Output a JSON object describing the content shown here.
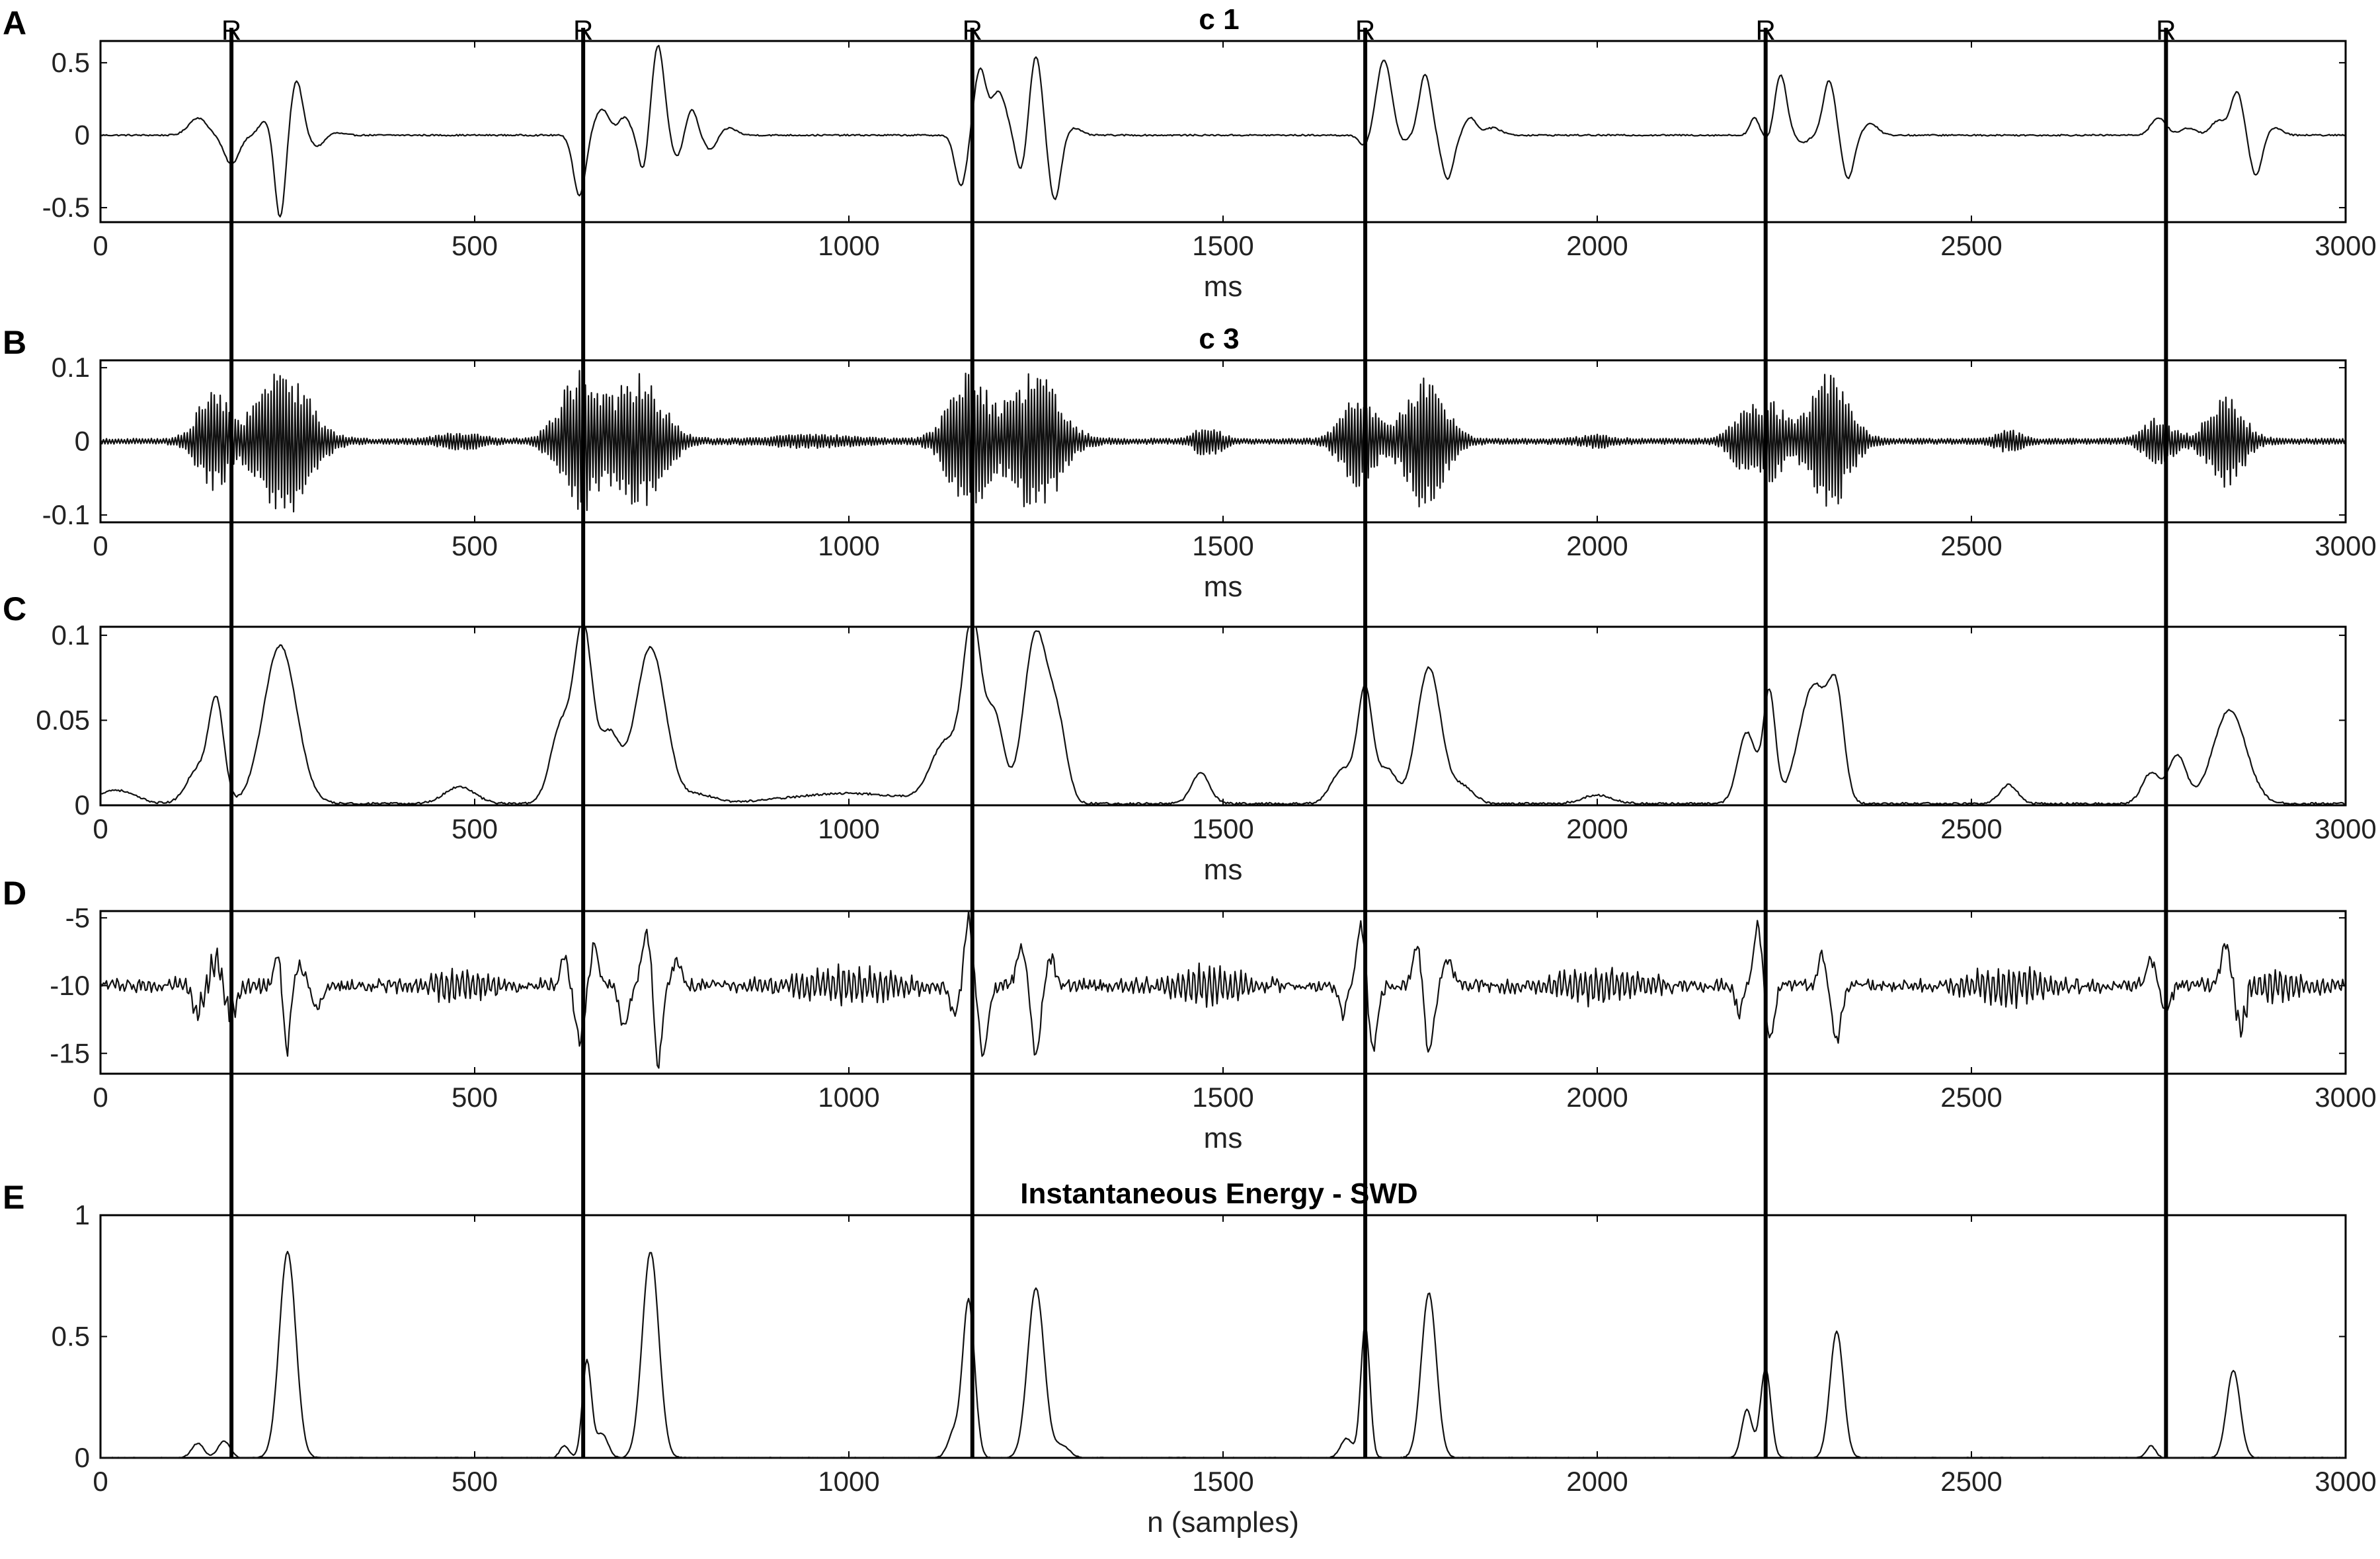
{
  "chart_data": [
    {
      "id": "A",
      "type": "line",
      "panel_letter": "A",
      "title": "c 1",
      "xlabel": "ms",
      "xlim": [
        0,
        3000
      ],
      "ylim": [
        -0.6,
        0.65
      ],
      "xticks": [
        0,
        500,
        1000,
        1500,
        2000,
        2500,
        3000
      ],
      "yticks": [
        -0.5,
        0,
        0.5
      ],
      "ytick_labels": [
        "-0.5",
        "0",
        "0.5"
      ],
      "baseline": 0,
      "noise": 0.005,
      "peaks": [
        [
          130,
          0.12,
          12
        ],
        [
          175,
          -0.2,
          10
        ],
        [
          220,
          0.1,
          8
        ],
        [
          240,
          -0.58,
          7
        ],
        [
          262,
          0.38,
          8
        ],
        [
          290,
          -0.08,
          10
        ],
        [
          310,
          0.02,
          12
        ],
        [
          640,
          -0.42,
          8
        ],
        [
          670,
          0.18,
          10
        ],
        [
          700,
          0.12,
          8
        ],
        [
          725,
          -0.25,
          6
        ],
        [
          745,
          0.62,
          8
        ],
        [
          770,
          -0.15,
          7
        ],
        [
          790,
          0.18,
          7
        ],
        [
          815,
          -0.1,
          8
        ],
        [
          840,
          0.05,
          10
        ],
        [
          1150,
          -0.35,
          8
        ],
        [
          1175,
          0.45,
          8
        ],
        [
          1200,
          0.3,
          10
        ],
        [
          1230,
          -0.25,
          7
        ],
        [
          1250,
          0.55,
          8
        ],
        [
          1275,
          -0.45,
          8
        ],
        [
          1300,
          0.05,
          10
        ],
        [
          1690,
          -0.08,
          8
        ],
        [
          1715,
          0.52,
          10
        ],
        [
          1740,
          -0.05,
          8
        ],
        [
          1770,
          0.42,
          8
        ],
        [
          1800,
          -0.3,
          8
        ],
        [
          1830,
          0.12,
          8
        ],
        [
          1860,
          0.05,
          12
        ],
        [
          2210,
          0.12,
          6
        ],
        [
          2230,
          -0.05,
          6
        ],
        [
          2245,
          0.42,
          8
        ],
        [
          2275,
          -0.05,
          8
        ],
        [
          2310,
          0.38,
          8
        ],
        [
          2335,
          -0.3,
          8
        ],
        [
          2365,
          0.08,
          10
        ],
        [
          2750,
          0.12,
          10
        ],
        [
          2790,
          0.05,
          10
        ],
        [
          2830,
          0.1,
          10
        ],
        [
          2855,
          0.3,
          8
        ],
        [
          2880,
          -0.28,
          8
        ],
        [
          2905,
          0.05,
          10
        ]
      ],
      "r_peaks": [
        175,
        645,
        1165,
        1690,
        2225,
        2760
      ]
    },
    {
      "id": "B",
      "type": "line",
      "panel_letter": "B",
      "title": "c 3",
      "xlabel": "ms",
      "xlim": [
        0,
        3000
      ],
      "ylim": [
        -0.11,
        0.11
      ],
      "xticks": [
        0,
        500,
        1000,
        1500,
        2000,
        2500,
        3000
      ],
      "yticks": [
        -0.1,
        0,
        0.1
      ],
      "ytick_labels": [
        "-0.1",
        "0",
        "0.1"
      ],
      "baseline": 0,
      "oscillation": true,
      "oscillation_step": 2,
      "noise": 0.003,
      "envelope": [
        [
          150,
          0.065,
          20
        ],
        [
          245,
          0.1,
          32
        ],
        [
          480,
          0.01,
          25
        ],
        [
          640,
          0.095,
          25
        ],
        [
          720,
          0.09,
          30
        ],
        [
          950,
          0.006,
          50
        ],
        [
          1160,
          0.09,
          25
        ],
        [
          1250,
          0.1,
          30
        ],
        [
          1480,
          0.02,
          15
        ],
        [
          1680,
          0.065,
          20
        ],
        [
          1770,
          0.09,
          25
        ],
        [
          2000,
          0.006,
          20
        ],
        [
          2200,
          0.045,
          18
        ],
        [
          2235,
          0.05,
          15
        ],
        [
          2310,
          0.095,
          25
        ],
        [
          2550,
          0.012,
          15
        ],
        [
          2750,
          0.03,
          18
        ],
        [
          2840,
          0.06,
          22
        ]
      ],
      "r_peaks": [
        175,
        645,
        1165,
        1690,
        2225,
        2760
      ]
    },
    {
      "id": "C",
      "type": "line",
      "panel_letter": "C",
      "title": "",
      "xlabel": "ms",
      "xlim": [
        0,
        3000
      ],
      "ylim": [
        0,
        0.105
      ],
      "xticks": [
        0,
        500,
        1000,
        1500,
        2000,
        2500,
        3000
      ],
      "yticks": [
        0,
        0.05,
        0.1
      ],
      "ytick_labels": [
        "0",
        "0.05",
        "0.1"
      ],
      "baseline": 0.001,
      "noise": 0.0006,
      "peaks": [
        [
          20,
          0.008,
          25
        ],
        [
          130,
          0.02,
          15
        ],
        [
          155,
          0.058,
          10
        ],
        [
          240,
          0.093,
          22
        ],
        [
          480,
          0.01,
          20
        ],
        [
          615,
          0.045,
          14
        ],
        [
          645,
          0.102,
          12
        ],
        [
          680,
          0.04,
          14
        ],
        [
          735,
          0.092,
          20
        ],
        [
          800,
          0.005,
          20
        ],
        [
          1000,
          0.006,
          80
        ],
        [
          1130,
          0.035,
          20
        ],
        [
          1165,
          0.102,
          12
        ],
        [
          1195,
          0.05,
          12
        ],
        [
          1250,
          0.1,
          16
        ],
        [
          1280,
          0.04,
          12
        ],
        [
          1470,
          0.018,
          12
        ],
        [
          1660,
          0.02,
          15
        ],
        [
          1690,
          0.066,
          10
        ],
        [
          1720,
          0.02,
          12
        ],
        [
          1775,
          0.08,
          16
        ],
        [
          1820,
          0.01,
          15
        ],
        [
          2000,
          0.005,
          20
        ],
        [
          2200,
          0.042,
          12
        ],
        [
          2230,
          0.065,
          8
        ],
        [
          2290,
          0.07,
          20
        ],
        [
          2320,
          0.05,
          10
        ],
        [
          2550,
          0.011,
          12
        ],
        [
          2740,
          0.018,
          12
        ],
        [
          2775,
          0.028,
          12
        ],
        [
          2845,
          0.055,
          22
        ]
      ],
      "r_peaks": [
        175,
        645,
        1165,
        1690,
        2225,
        2760
      ]
    },
    {
      "id": "D",
      "type": "line",
      "panel_letter": "D",
      "title": "",
      "xlabel": "ms",
      "xlim": [
        0,
        3000
      ],
      "ylim": [
        -16.5,
        -4.5
      ],
      "xticks": [
        0,
        500,
        1000,
        1500,
        2000,
        2500,
        3000
      ],
      "yticks": [
        -15,
        -10,
        -5
      ],
      "ytick_labels": [
        "-15",
        "-10",
        "-5"
      ],
      "baseline": -10,
      "noise": 0.35,
      "wiggle": 1.1,
      "wiggle_envelope": [
        [
          150,
          1,
          30
        ],
        [
          480,
          1,
          40
        ],
        [
          1000,
          1.2,
          60
        ],
        [
          1480,
          1.4,
          40
        ],
        [
          2000,
          1.2,
          50
        ],
        [
          2550,
          1.4,
          40
        ],
        [
          2900,
          1,
          40
        ]
      ],
      "peaks": [
        [
          130,
          -2,
          6
        ],
        [
          155,
          2,
          6
        ],
        [
          175,
          -2,
          8
        ],
        [
          240,
          3,
          6
        ],
        [
          248,
          -6,
          5
        ],
        [
          265,
          1.5,
          6
        ],
        [
          290,
          -1.5,
          6
        ],
        [
          620,
          2,
          5
        ],
        [
          640,
          -4,
          6
        ],
        [
          660,
          3,
          5
        ],
        [
          700,
          -3,
          6
        ],
        [
          730,
          4,
          6
        ],
        [
          745,
          -6,
          5
        ],
        [
          770,
          2,
          6
        ],
        [
          1140,
          -2,
          6
        ],
        [
          1160,
          5,
          5
        ],
        [
          1180,
          -5,
          6
        ],
        [
          1230,
          3,
          6
        ],
        [
          1250,
          -5,
          6
        ],
        [
          1270,
          2,
          6
        ],
        [
          1660,
          -2,
          5
        ],
        [
          1685,
          4.5,
          6
        ],
        [
          1700,
          -5,
          6
        ],
        [
          1760,
          3,
          6
        ],
        [
          1775,
          -5,
          6
        ],
        [
          1800,
          2,
          6
        ],
        [
          2190,
          -2,
          5
        ],
        [
          2215,
          4.5,
          6
        ],
        [
          2230,
          -4,
          6
        ],
        [
          2300,
          2.5,
          5
        ],
        [
          2320,
          -4,
          6
        ],
        [
          2740,
          2,
          6
        ],
        [
          2760,
          -2,
          6
        ],
        [
          2840,
          3,
          6
        ],
        [
          2860,
          -3,
          6
        ]
      ],
      "r_peaks": [
        175,
        645,
        1165,
        1690,
        2225,
        2760
      ]
    },
    {
      "id": "E",
      "type": "line",
      "panel_letter": "E",
      "title": "Instantaneous Energy - SWD",
      "xlabel": "n (samples)",
      "xlim": [
        0,
        3000
      ],
      "ylim": [
        0,
        1
      ],
      "xticks": [
        0,
        500,
        1000,
        1500,
        2000,
        2500,
        3000
      ],
      "yticks": [
        0,
        0.5,
        1
      ],
      "ytick_labels": [
        "0",
        "0.5",
        "1"
      ],
      "baseline": 0,
      "noise": 0.002,
      "peaks": [
        [
          130,
          0.06,
          8
        ],
        [
          165,
          0.07,
          8
        ],
        [
          250,
          0.85,
          11
        ],
        [
          620,
          0.05,
          6
        ],
        [
          650,
          0.4,
          6
        ],
        [
          670,
          0.1,
          8
        ],
        [
          735,
          0.85,
          11
        ],
        [
          1140,
          0.1,
          8
        ],
        [
          1160,
          0.65,
          8
        ],
        [
          1250,
          0.7,
          11
        ],
        [
          1285,
          0.05,
          10
        ],
        [
          1665,
          0.08,
          8
        ],
        [
          1690,
          0.55,
          6
        ],
        [
          1775,
          0.68,
          10
        ],
        [
          2200,
          0.2,
          7
        ],
        [
          2225,
          0.37,
          7
        ],
        [
          2320,
          0.52,
          9
        ],
        [
          2740,
          0.05,
          6
        ],
        [
          2850,
          0.36,
          9
        ]
      ],
      "r_peaks": [
        175,
        645,
        1165,
        1690,
        2225,
        2760
      ]
    }
  ],
  "r_peak_label": "R"
}
